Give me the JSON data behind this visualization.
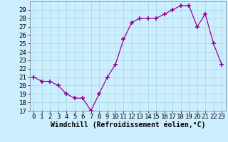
{
  "x": [
    0,
    1,
    2,
    3,
    4,
    5,
    6,
    7,
    8,
    9,
    10,
    11,
    12,
    13,
    14,
    15,
    16,
    17,
    18,
    19,
    20,
    21,
    22,
    23
  ],
  "y": [
    21,
    20.5,
    20.5,
    20,
    19,
    18.5,
    18.5,
    17,
    19,
    21,
    22.5,
    25.5,
    27.5,
    28,
    28,
    28,
    28.5,
    29,
    29.5,
    29.5,
    27,
    28.5,
    25,
    22.5
  ],
  "line_color": "#990099",
  "marker": "+",
  "marker_size": 4,
  "marker_linewidth": 1.2,
  "line_width": 0.9,
  "bg_color": "#cceeff",
  "grid_color": "#aadddd",
  "xlabel": "Windchill (Refroidissement éolien,°C)",
  "xlabel_fontsize": 7,
  "tick_fontsize": 6.5,
  "ylim": [
    17,
    30
  ],
  "yticks": [
    17,
    18,
    19,
    20,
    21,
    22,
    23,
    24,
    25,
    26,
    27,
    28,
    29
  ],
  "xticks": [
    0,
    1,
    2,
    3,
    4,
    5,
    6,
    7,
    8,
    9,
    10,
    11,
    12,
    13,
    14,
    15,
    16,
    17,
    18,
    19,
    20,
    21,
    22,
    23
  ],
  "xlim": [
    -0.5,
    23.5
  ]
}
